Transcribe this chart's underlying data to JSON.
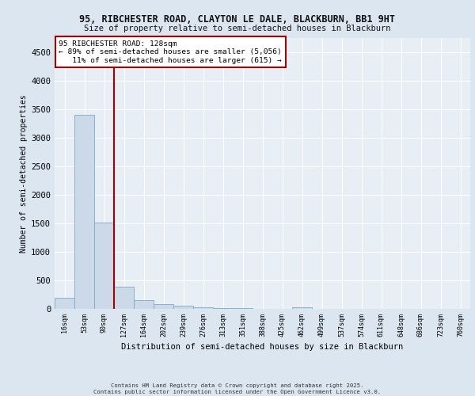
{
  "title1": "95, RIBCHESTER ROAD, CLAYTON LE DALE, BLACKBURN, BB1 9HT",
  "title2": "Size of property relative to semi-detached houses in Blackburn",
  "xlabel": "Distribution of semi-detached houses by size in Blackburn",
  "ylabel": "Number of semi-detached properties",
  "bins": [
    "16sqm",
    "53sqm",
    "90sqm",
    "127sqm",
    "164sqm",
    "202sqm",
    "239sqm",
    "276sqm",
    "313sqm",
    "351sqm",
    "388sqm",
    "425sqm",
    "462sqm",
    "499sqm",
    "537sqm",
    "574sqm",
    "611sqm",
    "648sqm",
    "686sqm",
    "723sqm",
    "760sqm"
  ],
  "bar_values": [
    200,
    3400,
    1510,
    390,
    155,
    90,
    58,
    32,
    18,
    8,
    0,
    0,
    22,
    0,
    0,
    0,
    0,
    0,
    0,
    0
  ],
  "bar_color": "#ccd9e8",
  "bar_edge_color": "#7aaac8",
  "annotation_text": "95 RIBCHESTER ROAD: 128sqm\n← 89% of semi-detached houses are smaller (5,056)\n   11% of semi-detached houses are larger (615) →",
  "vline_color": "#aa0000",
  "annotation_box_edgecolor": "#aa0000",
  "footer1": "Contains HM Land Registry data © Crown copyright and database right 2025.",
  "footer2": "Contains public sector information licensed under the Open Government Licence v3.0.",
  "ylim": [
    0,
    4750
  ],
  "yticks": [
    0,
    500,
    1000,
    1500,
    2000,
    2500,
    3000,
    3500,
    4000,
    4500
  ],
  "bg_color": "#dce6f0",
  "plot_bg_color": "#e8eef6",
  "vline_x_index": 3.0
}
